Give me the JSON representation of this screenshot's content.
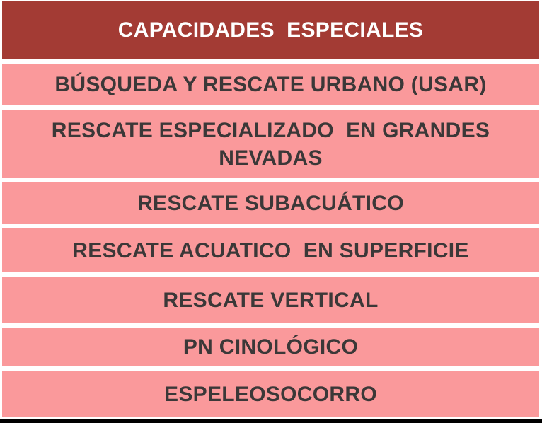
{
  "colors": {
    "page-bg": "#FFFFFF",
    "header-bg": "#A33B34",
    "header-text": "#FFFFFF",
    "row-bg": "#FA999B",
    "row-text": "#3B3838",
    "bottom-bar": "#000000"
  },
  "table": {
    "title": "CAPACIDADES  ESPECIALES",
    "rows": [
      "BÚSQUEDA Y RESCATE URBANO (USAR)",
      "RESCATE ESPECIALIZADO  EN GRANDES NEVADAS",
      "RESCATE SUBACUÁTICO",
      "RESCATE ACUATICO  EN SUPERFICIE",
      "RESCATE VERTICAL",
      "PN CINOLÓGICO",
      "ESPELEOSOCORRO"
    ]
  }
}
